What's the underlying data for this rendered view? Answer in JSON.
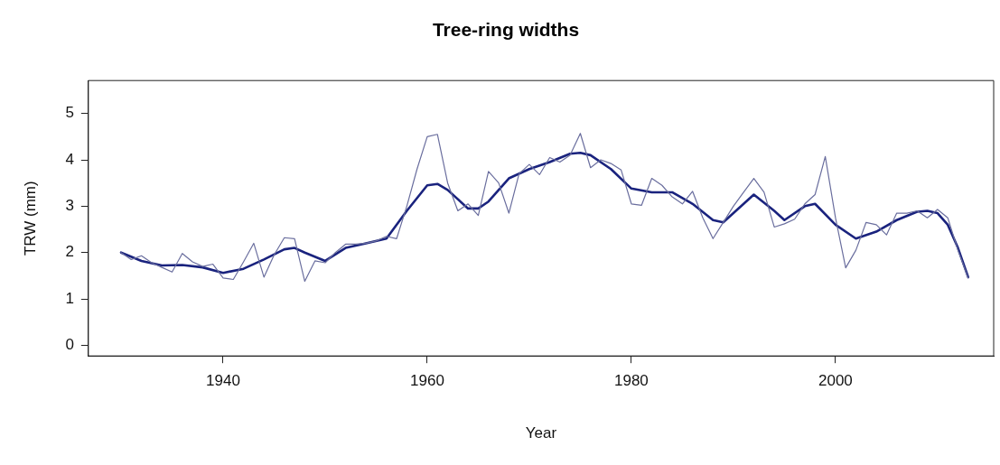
{
  "chart_data": {
    "type": "line",
    "title": "Tree-ring widths",
    "xlabel": "Year",
    "ylabel": "TRW (mm)",
    "xlim": [
      1926.8,
      2015.5
    ],
    "xticks": [
      1940,
      1960,
      1980,
      2000
    ],
    "ylim": [
      -0.23,
      5.71
    ],
    "yticks": [
      0,
      1,
      2,
      3,
      4,
      5
    ],
    "grid": false,
    "legend": false,
    "marker": "none",
    "line_style": "solid",
    "series": [
      {
        "color": "#6a6e9e",
        "x": [
          1930,
          1931,
          1932,
          1933,
          1934,
          1935,
          1936,
          1937,
          1938,
          1939,
          1940,
          1941,
          1942,
          1943,
          1944,
          1945,
          1946,
          1947,
          1948,
          1949,
          1950,
          1951,
          1952,
          1953,
          1954,
          1955,
          1956,
          1957,
          1958,
          1959,
          1960,
          1961,
          1962,
          1963,
          1964,
          1965,
          1966,
          1967,
          1968,
          1969,
          1970,
          1971,
          1972,
          1973,
          1974,
          1975,
          1976,
          1977,
          1978,
          1979,
          1980,
          1981,
          1982,
          1983,
          1984,
          1985,
          1986,
          1987,
          1988,
          1989,
          1990,
          1991,
          1992,
          1993,
          1994,
          1995,
          1996,
          1997,
          1998,
          1999,
          2000,
          2001,
          2002,
          2003,
          2004,
          2005,
          2006,
          2007,
          2008,
          2009,
          2010,
          2011,
          2012,
          2013
        ],
        "values": [
          2.0,
          1.85,
          1.93,
          1.78,
          1.68,
          1.58,
          1.98,
          1.8,
          1.7,
          1.75,
          1.45,
          1.42,
          1.8,
          2.2,
          1.47,
          1.95,
          2.32,
          2.3,
          1.38,
          1.82,
          1.78,
          2.0,
          2.18,
          2.18,
          2.2,
          2.25,
          2.35,
          2.3,
          3.0,
          3.8,
          4.5,
          4.55,
          3.5,
          2.9,
          3.05,
          2.8,
          3.75,
          3.5,
          2.85,
          3.7,
          3.9,
          3.68,
          4.05,
          3.95,
          4.1,
          4.57,
          3.83,
          4.0,
          3.92,
          3.78,
          3.05,
          3.02,
          3.6,
          3.45,
          3.2,
          3.05,
          3.32,
          2.75,
          2.3,
          2.65,
          3.0,
          3.3,
          3.6,
          3.3,
          2.55,
          2.62,
          2.72,
          3.05,
          3.25,
          4.07,
          2.75,
          1.67,
          2.05,
          2.65,
          2.6,
          2.38,
          2.85,
          2.85,
          2.9,
          2.75,
          2.93,
          2.75,
          2.05,
          1.45
        ]
      },
      {
        "color": "#1a237e",
        "x": [
          1930,
          1932,
          1934,
          1936,
          1938,
          1940,
          1942,
          1944,
          1946,
          1947,
          1948,
          1950,
          1952,
          1954,
          1956,
          1958,
          1960,
          1961,
          1962,
          1964,
          1965,
          1966,
          1968,
          1970,
          1972,
          1974,
          1975,
          1976,
          1978,
          1980,
          1982,
          1984,
          1986,
          1988,
          1989,
          1990,
          1992,
          1994,
          1995,
          1997,
          1998,
          2000,
          2002,
          2004,
          2006,
          2008,
          2009,
          2010,
          2011,
          2012,
          2013
        ],
        "values": [
          2.0,
          1.82,
          1.72,
          1.73,
          1.68,
          1.56,
          1.65,
          1.85,
          2.07,
          2.1,
          2.0,
          1.82,
          2.1,
          2.2,
          2.3,
          2.9,
          3.45,
          3.48,
          3.35,
          2.95,
          2.95,
          3.1,
          3.6,
          3.8,
          3.95,
          4.13,
          4.15,
          4.1,
          3.8,
          3.38,
          3.3,
          3.3,
          3.05,
          2.7,
          2.65,
          2.85,
          3.25,
          2.9,
          2.7,
          3.0,
          3.05,
          2.6,
          2.3,
          2.45,
          2.7,
          2.88,
          2.9,
          2.85,
          2.6,
          2.1,
          1.47
        ]
      }
    ]
  }
}
